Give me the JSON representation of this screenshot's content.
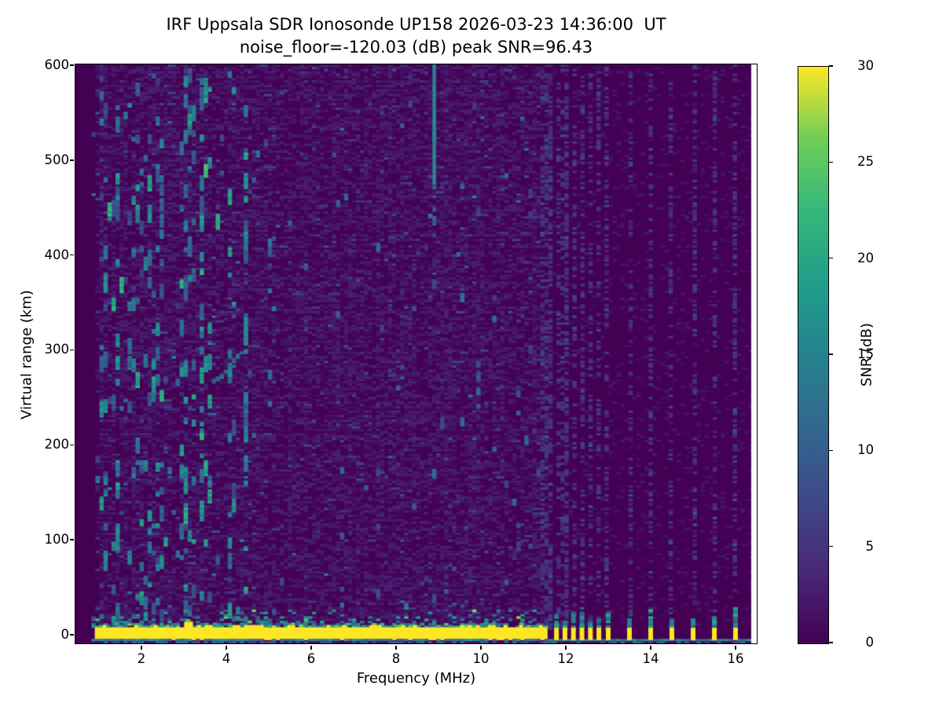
{
  "chart_data": {
    "type": "heatmap",
    "title": "IRF Uppsala SDR Ionosonde UP158 2026-03-23 14:36:00  UT",
    "subtitle": "noise_floor=-120.03 (dB) peak SNR=96.43",
    "station": "UP158",
    "timestamp_ut": "2026-03-23 14:36:00",
    "noise_floor_db": -120.03,
    "peak_snr_db": 96.43,
    "xlabel": "Frequency (MHz)",
    "ylabel": "Virtual range (km)",
    "xlim": [
      0.444,
      16.5
    ],
    "ylim": [
      -10,
      600
    ],
    "xticks": [
      2,
      4,
      6,
      8,
      10,
      12,
      14,
      16
    ],
    "yticks": [
      0,
      100,
      200,
      300,
      400,
      500,
      600
    ],
    "grid": false,
    "legend": "none",
    "colorbar": {
      "label": "SNR (dB)",
      "min": 0,
      "max": 30,
      "ticks": [
        0,
        5,
        10,
        15,
        20,
        25,
        30
      ],
      "colormap": "viridis"
    },
    "colormap_stops": [
      {
        "t": 0.0,
        "color": "#440154"
      },
      {
        "t": 0.125,
        "color": "#482878"
      },
      {
        "t": 0.25,
        "color": "#3e4989"
      },
      {
        "t": 0.375,
        "color": "#31688e"
      },
      {
        "t": 0.5,
        "color": "#26828e"
      },
      {
        "t": 0.625,
        "color": "#1f9e89"
      },
      {
        "t": 0.75,
        "color": "#35b779"
      },
      {
        "t": 0.875,
        "color": "#6ece58"
      },
      {
        "t": 1.0,
        "color": "#fde725"
      }
    ],
    "features": {
      "data_freq_range_mhz": [
        0.87,
        16.37
      ],
      "no_data_fill": "background",
      "ground_pulse_band": {
        "freq_range_mhz": [
          0.9,
          11.57
        ],
        "virtual_range_km": [
          -6.6,
          7
        ],
        "snr_db": 30
      },
      "band_bump": {
        "freq_mhz": 3.1,
        "extra_height_km": 6
      },
      "sub_band_row": {
        "freq_range_mhz": [
          0.9,
          16.33
        ],
        "virtual_range_km": [
          -10,
          -7
        ],
        "snr_db": 12
      },
      "interference_bars_mhz": [
        11.78,
        11.98,
        12.18,
        12.38,
        12.58,
        12.78,
        13.0,
        13.5,
        14.0,
        14.5,
        15.0,
        15.5,
        16.0
      ],
      "interference_cluster_mhz": [
        11.47,
        11.54,
        11.61,
        11.68,
        11.9,
        12.06
      ],
      "rfi_streak": {
        "freq_mhz": 8.9,
        "virtual_range_km": [
          476,
          600
        ],
        "fade_to_km": 420,
        "snr_db": 15
      },
      "echo_trace": {
        "freq_range_mhz": [
          3.65,
          4.35
        ],
        "virtual_range_km": [
          266,
          297
        ],
        "snr_db": 11
      },
      "speckle_region_mhz": [
        0.95,
        4.6
      ],
      "background_snr_db": 0
    }
  }
}
